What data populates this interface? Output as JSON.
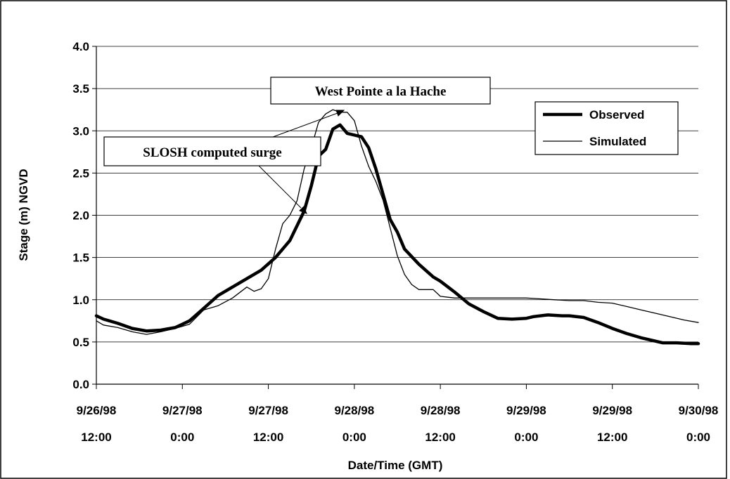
{
  "chart_data": {
    "type": "line",
    "title": "West Pointe a la Hache",
    "xlabel": "Date/Time (GMT)",
    "ylabel": "Stage (m) NGVD",
    "ylim": [
      0,
      4
    ],
    "yticks": [
      "0.0",
      "0.5",
      "1.0",
      "1.5",
      "2.0",
      "2.5",
      "3.0",
      "3.5",
      "4.0"
    ],
    "xlim": [
      "1998-09-26 12:00",
      "1998-09-30 00:00"
    ],
    "xticks": [
      {
        "date": "9/26/98",
        "time": "12:00"
      },
      {
        "date": "9/27/98",
        "time": "0:00"
      },
      {
        "date": "9/27/98",
        "time": "12:00"
      },
      {
        "date": "9/28/98",
        "time": "0:00"
      },
      {
        "date": "9/28/98",
        "time": "12:00"
      },
      {
        "date": "9/29/98",
        "time": "0:00"
      },
      {
        "date": "9/29/98",
        "time": "12:00"
      },
      {
        "date": "9/30/98",
        "time": "0:00"
      }
    ],
    "grid": "horizontal",
    "legend_position": "top-right",
    "annotation": "SLOSH computed surge",
    "series": [
      {
        "name": "Observed",
        "color": "#000000",
        "x": [
          "1998-09-26 12:00",
          "1998-09-26 13:00",
          "1998-09-26 15:00",
          "1998-09-26 17:00",
          "1998-09-26 19:00",
          "1998-09-26 21:00",
          "1998-09-26 23:00",
          "1998-09-27 01:00",
          "1998-09-27 03:00",
          "1998-09-27 05:00",
          "1998-09-27 07:00",
          "1998-09-27 09:00",
          "1998-09-27 11:00",
          "1998-09-27 13:00",
          "1998-09-27 15:00",
          "1998-09-27 17:00",
          "1998-09-27 18:00",
          "1998-09-27 19:00",
          "1998-09-27 20:00",
          "1998-09-27 21:00",
          "1998-09-27 22:00",
          "1998-09-27 23:00",
          "1998-09-28 00:00",
          "1998-09-28 01:00",
          "1998-09-28 02:00",
          "1998-09-28 03:00",
          "1998-09-28 04:00",
          "1998-09-28 05:00",
          "1998-09-28 06:00",
          "1998-09-28 07:00",
          "1998-09-28 09:00",
          "1998-09-28 11:00",
          "1998-09-28 12:00",
          "1998-09-28 14:00",
          "1998-09-28 16:00",
          "1998-09-28 18:00",
          "1998-09-28 20:00",
          "1998-09-28 22:00",
          "1998-09-29 00:00",
          "1998-09-29 01:00",
          "1998-09-29 03:00",
          "1998-09-29 05:00",
          "1998-09-29 06:00",
          "1998-09-29 08:00",
          "1998-09-29 10:00",
          "1998-09-29 12:00",
          "1998-09-29 14:00",
          "1998-09-29 16:00",
          "1998-09-29 18:00",
          "1998-09-29 19:00",
          "1998-09-29 21:00",
          "1998-09-29 23:00",
          "1998-09-30 00:00"
        ],
        "y": [
          0.81,
          0.77,
          0.72,
          0.66,
          0.63,
          0.64,
          0.67,
          0.75,
          0.9,
          1.05,
          1.15,
          1.25,
          1.35,
          1.5,
          1.7,
          2.05,
          2.35,
          2.7,
          2.78,
          3.02,
          3.07,
          2.97,
          2.95,
          2.93,
          2.8,
          2.55,
          2.25,
          1.95,
          1.8,
          1.6,
          1.42,
          1.27,
          1.22,
          1.09,
          0.95,
          0.86,
          0.78,
          0.77,
          0.78,
          0.8,
          0.82,
          0.81,
          0.81,
          0.79,
          0.73,
          0.66,
          0.6,
          0.55,
          0.51,
          0.49,
          0.49,
          0.48,
          0.48
        ]
      },
      {
        "name": "Simulated",
        "color": "#000000",
        "x": [
          "1998-09-26 12:00",
          "1998-09-26 13:00",
          "1998-09-26 15:00",
          "1998-09-26 17:00",
          "1998-09-26 19:00",
          "1998-09-26 21:00",
          "1998-09-26 23:00",
          "1998-09-27 01:00",
          "1998-09-27 03:00",
          "1998-09-27 05:00",
          "1998-09-27 07:00",
          "1998-09-27 09:00",
          "1998-09-27 10:00",
          "1998-09-27 11:00",
          "1998-09-27 12:00",
          "1998-09-27 13:00",
          "1998-09-27 14:00",
          "1998-09-27 15:00",
          "1998-09-27 16:00",
          "1998-09-27 17:00",
          "1998-09-27 18:00",
          "1998-09-27 19:00",
          "1998-09-27 20:00",
          "1998-09-27 21:00",
          "1998-09-27 22:00",
          "1998-09-27 23:00",
          "1998-09-28 00:00",
          "1998-09-28 01:00",
          "1998-09-28 02:00",
          "1998-09-28 03:00",
          "1998-09-28 04:00",
          "1998-09-28 05:00",
          "1998-09-28 06:00",
          "1998-09-28 07:00",
          "1998-09-28 08:00",
          "1998-09-28 09:00",
          "1998-09-28 11:00",
          "1998-09-28 12:00",
          "1998-09-28 14:00",
          "1998-09-28 16:00",
          "1998-09-28 18:00",
          "1998-09-28 20:00",
          "1998-09-28 22:00",
          "1998-09-29 00:00",
          "1998-09-29 02:00",
          "1998-09-29 04:00",
          "1998-09-29 06:00",
          "1998-09-29 08:00",
          "1998-09-29 10:00",
          "1998-09-29 12:00",
          "1998-09-29 14:00",
          "1998-09-29 16:00",
          "1998-09-29 18:00",
          "1998-09-29 20:00",
          "1998-09-29 22:00",
          "1998-09-30 00:00"
        ],
        "y": [
          0.75,
          0.7,
          0.67,
          0.62,
          0.59,
          0.62,
          0.66,
          0.71,
          0.88,
          0.93,
          1.02,
          1.15,
          1.1,
          1.13,
          1.25,
          1.6,
          1.9,
          2.0,
          2.17,
          2.55,
          2.8,
          3.1,
          3.2,
          3.25,
          3.22,
          3.22,
          3.12,
          2.82,
          2.58,
          2.4,
          2.18,
          1.85,
          1.52,
          1.3,
          1.18,
          1.12,
          1.12,
          1.04,
          1.02,
          1.02,
          1.02,
          1.02,
          1.02,
          1.02,
          1.01,
          1.0,
          0.99,
          0.99,
          0.97,
          0.96,
          0.92,
          0.88,
          0.84,
          0.8,
          0.76,
          0.73
        ]
      }
    ]
  }
}
